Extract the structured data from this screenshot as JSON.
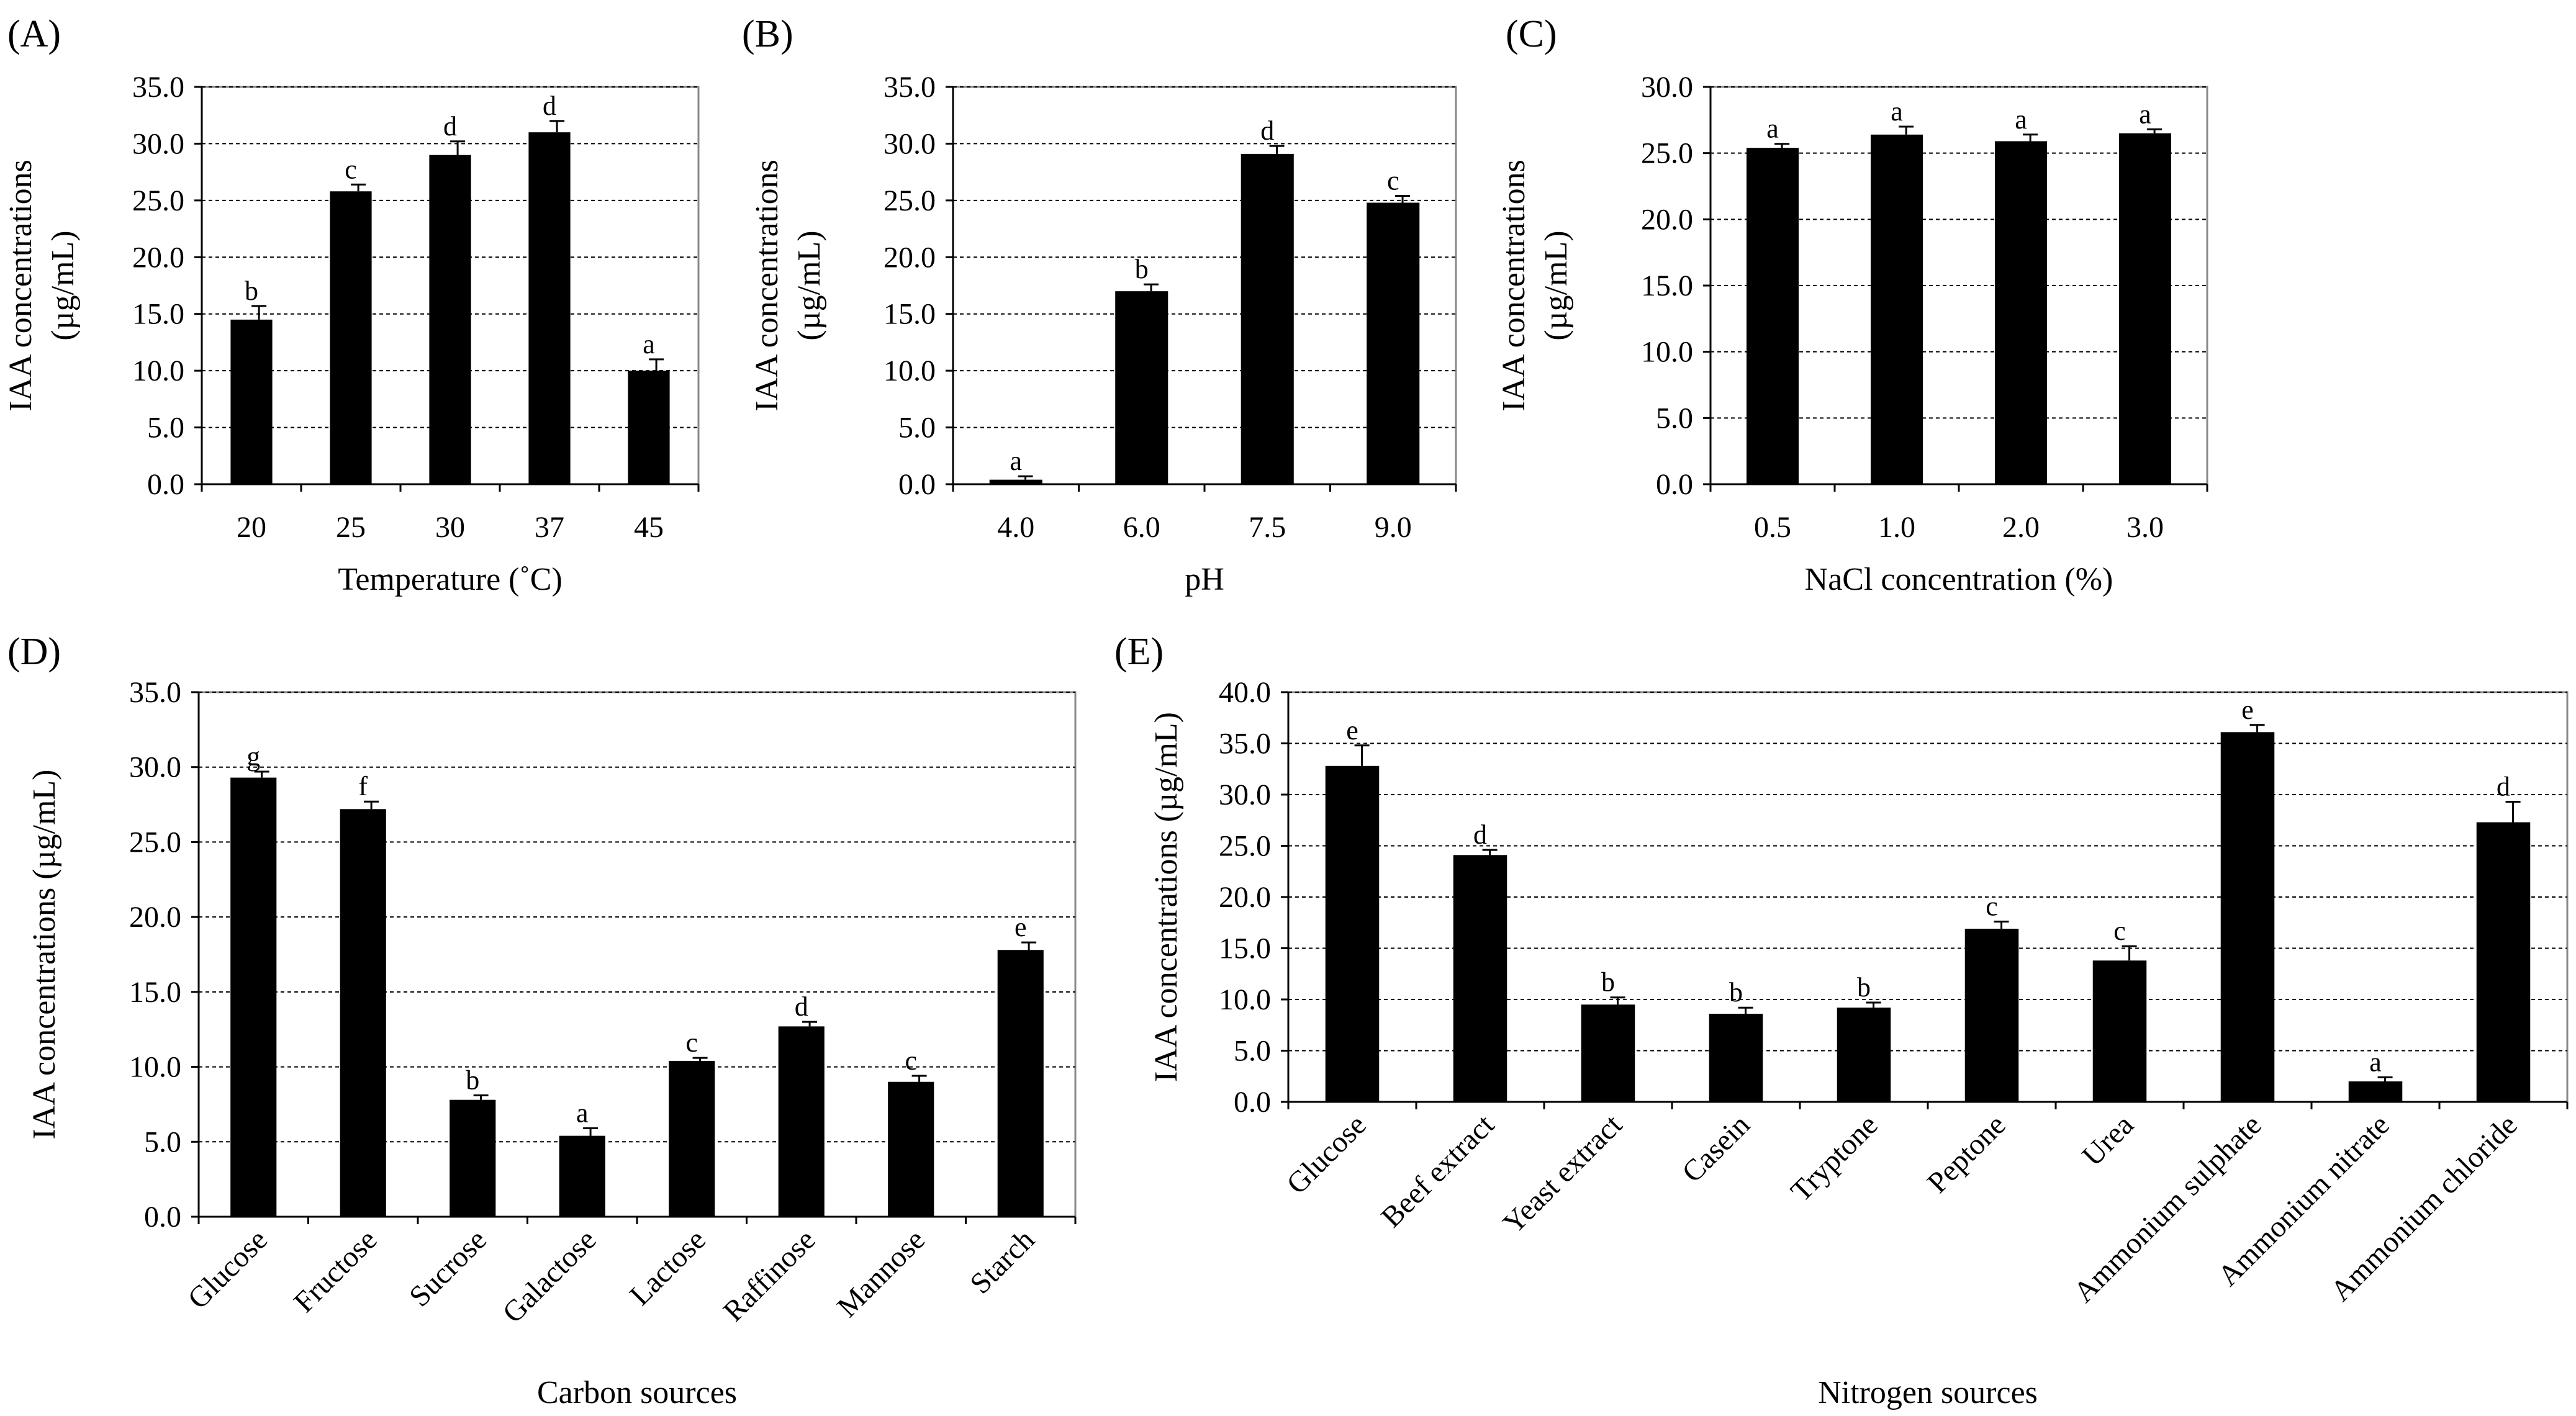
{
  "figure": {
    "description_colors": {
      "bar": "#000000",
      "grid": "#000000",
      "background": "#ffffff"
    }
  },
  "chart_data": [
    {
      "panel": "(A)",
      "type": "bar",
      "ylabel_line1": "IAA concentrations",
      "ylabel_line2": "(µg/mL)",
      "xlabel": "Temperature (˚C)",
      "ylim": [
        0,
        35
      ],
      "yticks": [
        "0.0",
        "5.0",
        "10.0",
        "15.0",
        "20.0",
        "25.0",
        "30.0",
        "35.0"
      ],
      "categories": [
        "20",
        "25",
        "30",
        "37",
        "45"
      ],
      "values": [
        14.5,
        25.8,
        29.0,
        31.0,
        10.0
      ],
      "errors": [
        1.2,
        0.6,
        1.2,
        1.0,
        1.0
      ],
      "letters": [
        "b",
        "c",
        "d",
        "d",
        "a"
      ],
      "grid": true
    },
    {
      "panel": "(B)",
      "type": "bar",
      "ylabel_line1": "IAA concentrations",
      "ylabel_line2": "(µg/mL)",
      "xlabel": "pH",
      "ylim": [
        0,
        35
      ],
      "yticks": [
        "0.0",
        "5.0",
        "10.0",
        "15.0",
        "20.0",
        "25.0",
        "30.0",
        "35.0"
      ],
      "categories": [
        "4.0",
        "6.0",
        "7.5",
        "9.0"
      ],
      "values": [
        0.4,
        17.0,
        29.1,
        24.8
      ],
      "errors": [
        0.3,
        0.6,
        0.7,
        0.6
      ],
      "letters": [
        "a",
        "b",
        "d",
        "c"
      ],
      "grid": true
    },
    {
      "panel": "(C)",
      "type": "bar",
      "ylabel_line1": "IAA concentrations",
      "ylabel_line2": "(µg/mL)",
      "xlabel": "NaCl concentration (%)",
      "ylim": [
        0,
        30
      ],
      "yticks": [
        "0.0",
        "5.0",
        "10.0",
        "15.0",
        "20.0",
        "25.0",
        "30.0"
      ],
      "categories": [
        "0.5",
        "1.0",
        "2.0",
        "3.0"
      ],
      "values": [
        25.4,
        26.4,
        25.9,
        26.5
      ],
      "errors": [
        0.3,
        0.6,
        0.5,
        0.3
      ],
      "letters": [
        "a",
        "a",
        "a",
        "a"
      ],
      "grid": true
    },
    {
      "panel": "(D)",
      "type": "bar",
      "ylabel_line1": "IAA concentrations (µg/mL)",
      "ylabel_line2": "",
      "xlabel": "Carbon sources",
      "ylim": [
        0,
        35
      ],
      "yticks": [
        "0.0",
        "5.0",
        "10.0",
        "15.0",
        "20.0",
        "25.0",
        "30.0",
        "35.0"
      ],
      "categories": [
        "Glucose",
        "Fructose",
        "Sucrose",
        "Galactose",
        "Lactose",
        "Raffinose",
        "Mannose",
        "Starch"
      ],
      "values": [
        29.3,
        27.2,
        7.8,
        5.4,
        10.4,
        12.7,
        9.0,
        17.8
      ],
      "errors": [
        0.4,
        0.5,
        0.3,
        0.5,
        0.2,
        0.3,
        0.4,
        0.5
      ],
      "letters": [
        "g",
        "f",
        "b",
        "a",
        "c",
        "d",
        "c",
        "e"
      ],
      "grid": true,
      "rotated_labels": true
    },
    {
      "panel": "(E)",
      "type": "bar",
      "ylabel_line1": "IAA concentrations (µg/mL)",
      "ylabel_line2": "",
      "xlabel": "Nitrogen sources",
      "ylim": [
        0,
        40
      ],
      "yticks": [
        "0.0",
        "5.0",
        "10.0",
        "15.0",
        "20.0",
        "25.0",
        "30.0",
        "35.0",
        "40.0"
      ],
      "categories": [
        "Glucose",
        "Beef extract",
        "Yeast extract",
        "Casein",
        "Tryptone",
        "Peptone",
        "Urea",
        "Ammonium sulphate",
        "Ammonium nitrate",
        "Ammonium chloride"
      ],
      "values": [
        32.8,
        24.1,
        9.5,
        8.6,
        9.2,
        16.9,
        13.8,
        36.1,
        2.0,
        27.3
      ],
      "errors": [
        2.0,
        0.5,
        0.7,
        0.6,
        0.5,
        0.7,
        1.4,
        0.7,
        0.4,
        2.0
      ],
      "letters": [
        "e",
        "d",
        "b",
        "b",
        "b",
        "c",
        "c",
        "e",
        "a",
        "d"
      ],
      "grid": true,
      "rotated_labels": true
    }
  ]
}
